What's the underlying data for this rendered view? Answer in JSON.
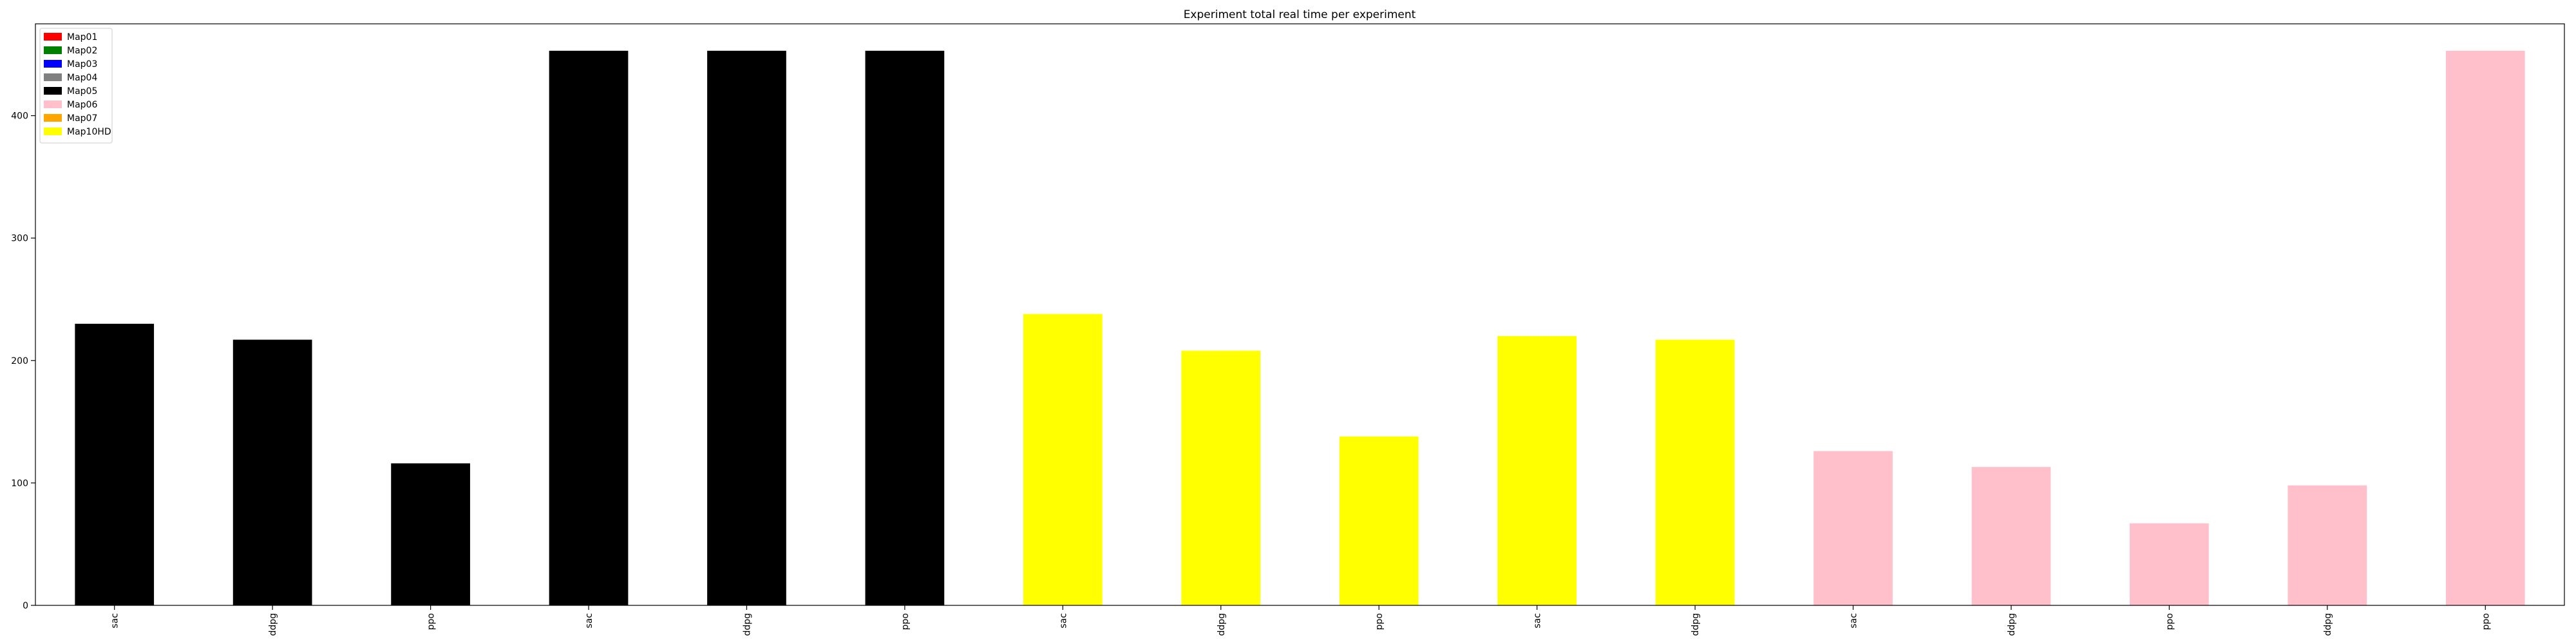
{
  "chart_data": {
    "type": "bar",
    "title": "Experiment total real time per experiment",
    "xlabel": "",
    "ylabel": "",
    "ylim": [
      0,
      475
    ],
    "yticks": [
      0,
      100,
      200,
      300,
      400
    ],
    "grid": false,
    "legend_position": "top-left",
    "legend": [
      {
        "label": "Map01",
        "color": "#ff0000"
      },
      {
        "label": "Map02",
        "color": "#008000"
      },
      {
        "label": "Map03",
        "color": "#0000ff"
      },
      {
        "label": "Map04",
        "color": "#808080"
      },
      {
        "label": "Map05",
        "color": "#000000"
      },
      {
        "label": "Map06",
        "color": "#ffc0cb"
      },
      {
        "label": "Map07",
        "color": "#ffa500"
      },
      {
        "label": "Map10HD",
        "color": "#ffff00"
      }
    ],
    "categories": [
      "sac",
      "ddpg",
      "ppo",
      "sac",
      "ddpg",
      "ppo",
      "sac",
      "ddpg",
      "ppo",
      "sac",
      "ddpg",
      "sac",
      "ddpg",
      "ppo",
      "ddpg",
      "ppo"
    ],
    "values": [
      230,
      217,
      116,
      453,
      453,
      453,
      238,
      208,
      138,
      220,
      217,
      126,
      113,
      67,
      98,
      453
    ],
    "bar_colors": [
      "#000000",
      "#000000",
      "#000000",
      "#000000",
      "#000000",
      "#000000",
      "#ffff00",
      "#ffff00",
      "#ffff00",
      "#ffff00",
      "#ffff00",
      "#ffc0cb",
      "#ffc0cb",
      "#ffc0cb",
      "#ffc0cb",
      "#ffc0cb"
    ]
  }
}
